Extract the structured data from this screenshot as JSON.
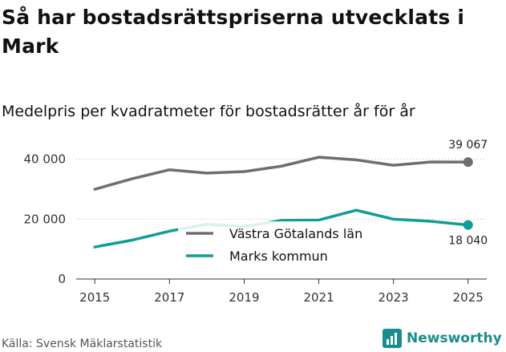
{
  "title": "Så har bostadsrättspriserna utvecklats i Mark",
  "subtitle": "Medelpris per kvadratmeter för bostadsrätter år för år",
  "source": "Källa: Svensk Mäklarstatistik",
  "brand": {
    "name": "Newsworthy",
    "icon": "newsworthy-logo-icon",
    "color": "#1b8c8c"
  },
  "chart_data": {
    "type": "line",
    "x": [
      2015,
      2016,
      2017,
      2018,
      2019,
      2020,
      2021,
      2022,
      2023,
      2024,
      2025
    ],
    "x_ticks": [
      "2015",
      "2017",
      "2019",
      "2021",
      "2023",
      "2025"
    ],
    "y_ticks": [
      {
        "value": 0,
        "label": "0"
      },
      {
        "value": 20000,
        "label": "20 000"
      },
      {
        "value": 40000,
        "label": "40 000"
      }
    ],
    "ylim": [
      0,
      45000
    ],
    "grid": "horizontal-dotted",
    "legend_position": "center",
    "series": [
      {
        "name": "Västra Götalands län",
        "color": "#6e6e72",
        "values": [
          30000,
          33500,
          36500,
          35400,
          35900,
          37700,
          40700,
          39800,
          38000,
          39100,
          39067
        ],
        "end_label": "39 067"
      },
      {
        "name": "Marks kommun",
        "color": "#0f9e95",
        "values": [
          10700,
          13000,
          16000,
          18300,
          17500,
          19600,
          19700,
          23000,
          20000,
          19300,
          18040
        ],
        "end_label": "18 040"
      }
    ]
  }
}
